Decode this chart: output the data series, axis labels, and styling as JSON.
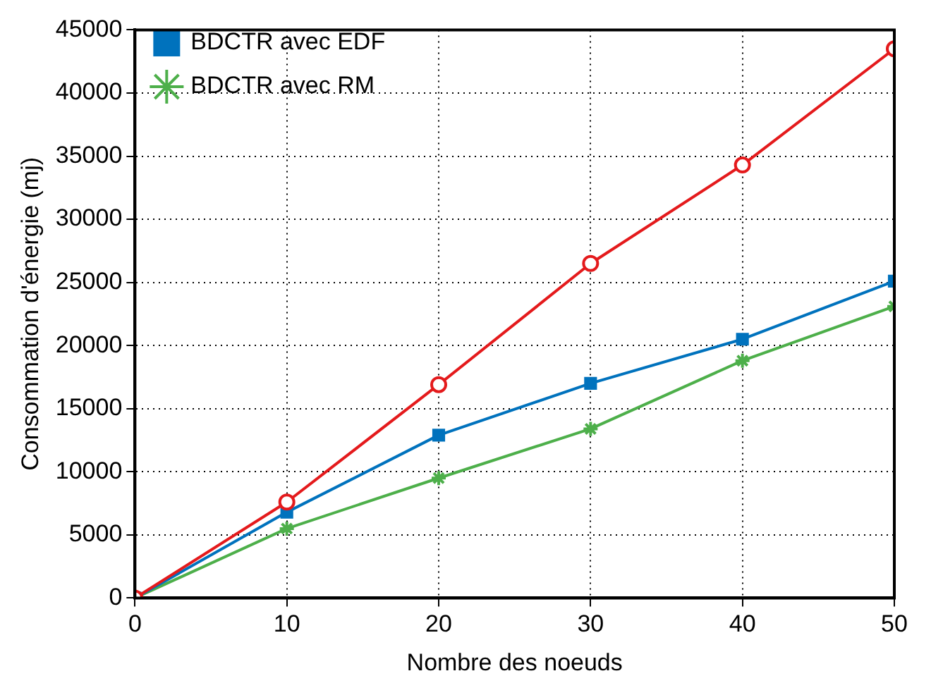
{
  "chart_data": {
    "type": "line",
    "xlabel": "Nombre des noeuds",
    "ylabel": "Consommation d'énergie (mj)",
    "x": [
      0,
      10,
      20,
      30,
      40,
      50
    ],
    "series": [
      {
        "color": "#e41a1c",
        "marker": "circle",
        "values": [
          0,
          7600,
          16900,
          26500,
          34300,
          43500
        ]
      },
      {
        "name": "BDCTR avec EDF",
        "color": "#0072bd",
        "marker": "square",
        "values": [
          0,
          6800,
          12900,
          17000,
          20500,
          25100
        ]
      },
      {
        "name": "BDCTR avec RM",
        "color": "#4daf4a",
        "marker": "cross",
        "values": [
          0,
          5500,
          9500,
          13400,
          18800,
          23100
        ]
      }
    ],
    "xlim": [
      0,
      50
    ],
    "xticks": [
      0,
      10,
      20,
      30,
      40,
      50
    ],
    "ylim": [
      0,
      45000
    ],
    "yticks": [
      0,
      5000,
      10000,
      15000,
      20000,
      25000,
      30000,
      35000,
      40000,
      45000
    ],
    "grid": true,
    "legend": "top left",
    "line_style": "solid"
  }
}
